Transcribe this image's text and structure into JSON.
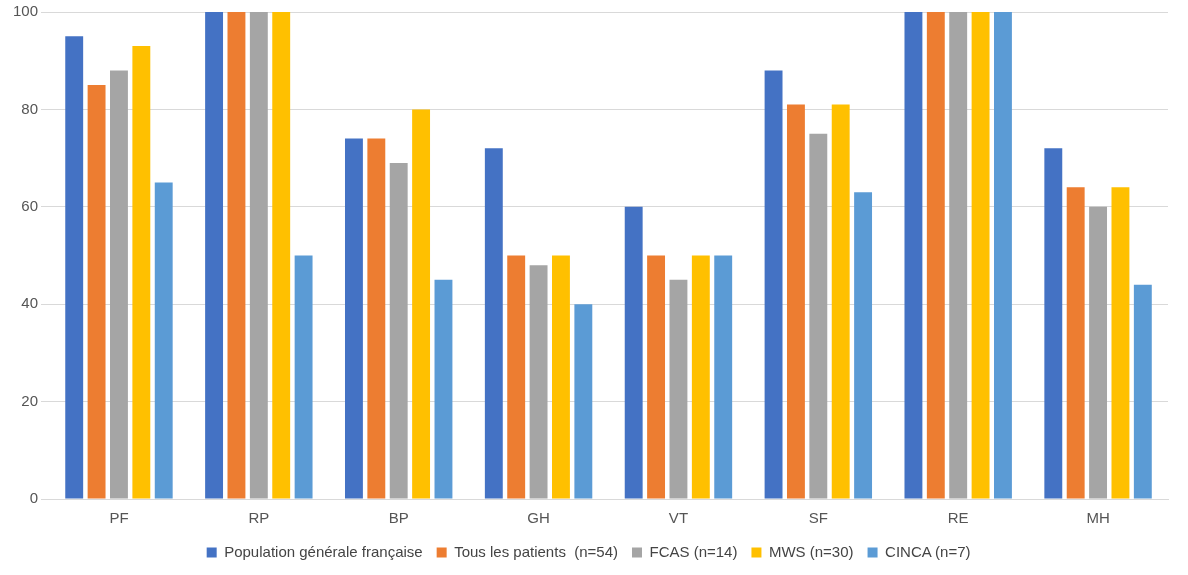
{
  "chart_data": {
    "type": "bar",
    "categories": [
      "PF",
      "RP",
      "BP",
      "GH",
      "VT",
      "SF",
      "RE",
      "MH"
    ],
    "series": [
      {
        "name": "Population générale française",
        "color": "#4472c4",
        "values": [
          95,
          100,
          74,
          72,
          60,
          88,
          100,
          72
        ]
      },
      {
        "name": "Tous les patients  (n=54)",
        "color": "#ed7d31",
        "values": [
          85,
          100,
          74,
          50,
          50,
          81,
          100,
          64
        ]
      },
      {
        "name": "FCAS (n=14)",
        "color": "#a5a5a5",
        "values": [
          88,
          100,
          69,
          48,
          45,
          75,
          100,
          60
        ]
      },
      {
        "name": "MWS (n=30)",
        "color": "#ffc000",
        "values": [
          93,
          100,
          80,
          50,
          50,
          81,
          100,
          64
        ]
      },
      {
        "name": "CINCA (n=7)",
        "color": "#5b9bd5",
        "values": [
          65,
          50,
          45,
          40,
          50,
          63,
          100,
          44
        ]
      }
    ],
    "ylim": [
      0,
      100
    ],
    "yticks": [
      0,
      20,
      40,
      60,
      80,
      100
    ],
    "grid": "y",
    "legend": "bottom"
  }
}
